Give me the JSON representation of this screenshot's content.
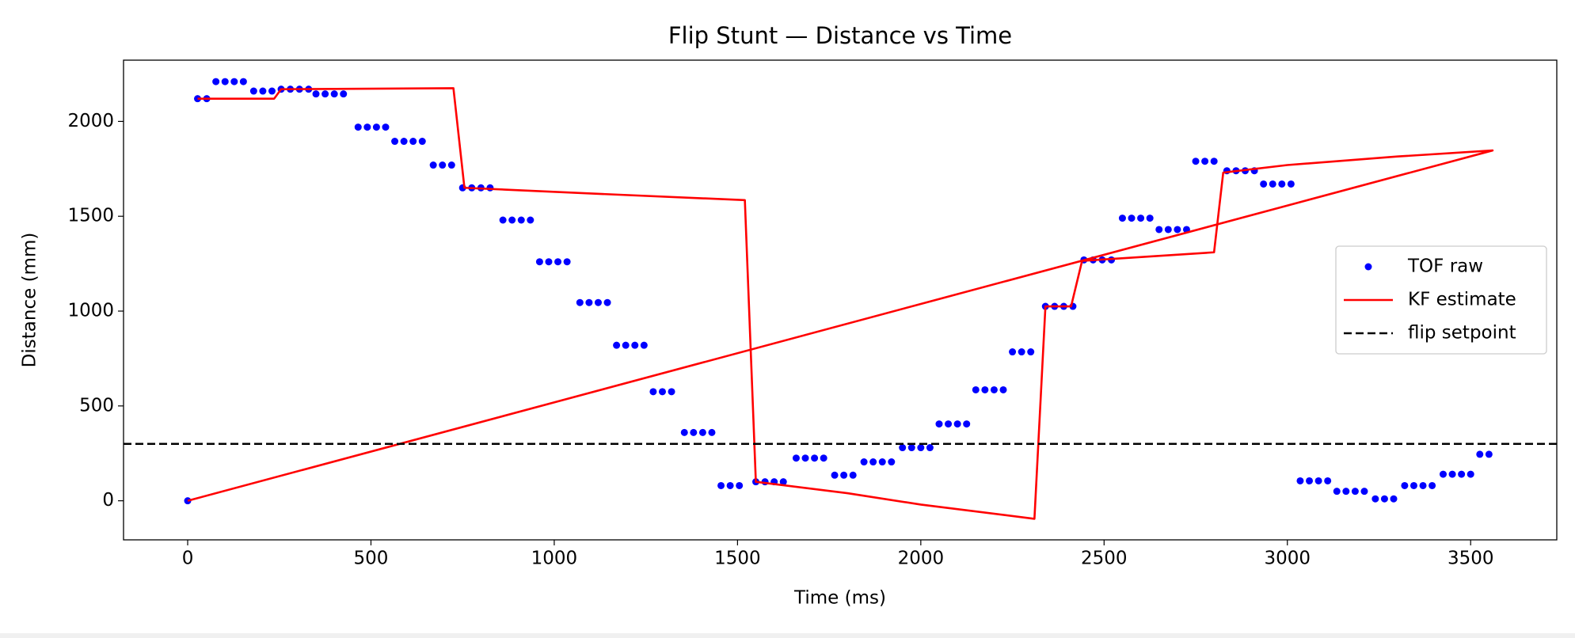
{
  "chart_data": {
    "type": "scatter-line",
    "title": "Flip Stunt — Distance vs Time",
    "xlabel": "Time (ms)",
    "ylabel": "Distance (mm)",
    "xlim": [
      -175,
      3735
    ],
    "ylim": [
      -206,
      2323
    ],
    "xticks": [
      0,
      500,
      1000,
      1500,
      2000,
      2500,
      3000,
      3500
    ],
    "yticks": [
      0,
      500,
      1000,
      1500,
      2000
    ],
    "grid": false,
    "legend": "center right",
    "series": [
      {
        "name": "TOF raw",
        "type": "scatter",
        "color": "#0000ff",
        "x": [
          0,
          27,
          52,
          77,
          102,
          127,
          152,
          180,
          205,
          230,
          255,
          280,
          305,
          330,
          350,
          375,
          400,
          425,
          465,
          490,
          515,
          540,
          565,
          590,
          615,
          640,
          670,
          695,
          720,
          750,
          775,
          800,
          825,
          860,
          885,
          910,
          935,
          960,
          985,
          1010,
          1035,
          1070,
          1095,
          1120,
          1145,
          1170,
          1195,
          1220,
          1245,
          1270,
          1295,
          1320,
          1355,
          1380,
          1405,
          1430,
          1455,
          1480,
          1505,
          1550,
          1575,
          1600,
          1625,
          1660,
          1685,
          1710,
          1735,
          1765,
          1790,
          1815,
          1845,
          1870,
          1895,
          1920,
          1950,
          1975,
          2000,
          2025,
          2050,
          2075,
          2100,
          2125,
          2150,
          2175,
          2200,
          2225,
          2250,
          2275,
          2300,
          2340,
          2365,
          2390,
          2415,
          2445,
          2470,
          2495,
          2520,
          2550,
          2575,
          2600,
          2625,
          2650,
          2675,
          2700,
          2725,
          2750,
          2775,
          2800,
          2835,
          2860,
          2885,
          2910,
          2935,
          2960,
          2985,
          3010,
          3035,
          3060,
          3085,
          3110,
          3135,
          3160,
          3185,
          3210,
          3240,
          3265,
          3290,
          3320,
          3345,
          3370,
          3395,
          3425,
          3450,
          3475,
          3500,
          3525,
          3550
        ],
        "values": [
          0,
          2120,
          2120,
          2210,
          2210,
          2210,
          2210,
          2160,
          2160,
          2160,
          2170,
          2170,
          2170,
          2170,
          2145,
          2145,
          2145,
          2145,
          1970,
          1970,
          1970,
          1970,
          1895,
          1895,
          1895,
          1895,
          1770,
          1770,
          1770,
          1650,
          1650,
          1650,
          1650,
          1480,
          1480,
          1480,
          1480,
          1260,
          1260,
          1260,
          1260,
          1045,
          1045,
          1045,
          1045,
          820,
          820,
          820,
          820,
          575,
          575,
          575,
          360,
          360,
          360,
          360,
          80,
          80,
          80,
          100,
          100,
          100,
          100,
          225,
          225,
          225,
          225,
          135,
          135,
          135,
          205,
          205,
          205,
          205,
          280,
          280,
          280,
          280,
          405,
          405,
          405,
          405,
          585,
          585,
          585,
          585,
          785,
          785,
          785,
          1025,
          1025,
          1025,
          1025,
          1270,
          1270,
          1270,
          1270,
          1490,
          1490,
          1490,
          1490,
          1430,
          1430,
          1430,
          1430,
          1790,
          1790,
          1790,
          1740,
          1740,
          1740,
          1740,
          1670,
          1670,
          1670,
          1670,
          105,
          105,
          105,
          105,
          50,
          50,
          50,
          50,
          10,
          10,
          10,
          80,
          80,
          80,
          80,
          140,
          140,
          140,
          140,
          245,
          245
        ]
      },
      {
        "name": "KF estimate",
        "type": "line",
        "color": "#ff0000",
        "x": [
          27,
          236,
          255,
          725,
          755,
          1100,
          1520,
          1550,
          1800,
          2000,
          2310,
          2340,
          2410,
          2440,
          2800,
          2825,
          3000,
          3300,
          3560,
          0
        ],
        "values": [
          2120,
          2120,
          2170,
          2175,
          1650,
          1620,
          1585,
          100,
          40,
          -20,
          -95,
          1025,
          1025,
          1265,
          1310,
          1730,
          1770,
          1815,
          1847,
          0
        ]
      },
      {
        "name": "flip setpoint",
        "type": "hline",
        "color": "#000000",
        "dashed": true,
        "values": [
          300
        ]
      }
    ]
  }
}
